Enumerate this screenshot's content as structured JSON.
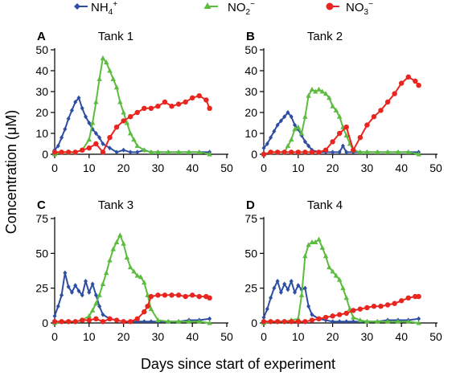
{
  "figure": {
    "ylabel": "Concentration (μM)",
    "xlabel": "Days since start of experiment",
    "legend": [
      {
        "label": "NH",
        "sub": "4",
        "sup": "+",
        "color": "#2e4ea3",
        "marker": "diamond"
      },
      {
        "label": "NO",
        "sub": "2",
        "sup": "−",
        "color": "#5cbc3f",
        "marker": "triangle"
      },
      {
        "label": "NO",
        "sub": "3",
        "sup": "−",
        "color": "#e8251f",
        "marker": "circle"
      }
    ]
  },
  "chart_data": [
    {
      "type": "line",
      "panel_letter": "A",
      "title": "Tank 1",
      "xlim": [
        0,
        50
      ],
      "ylim": [
        0,
        50
      ],
      "xticks": [
        0,
        10,
        20,
        30,
        40,
        50
      ],
      "yticks": [
        0,
        10,
        20,
        30,
        40,
        50
      ],
      "series": [
        {
          "name": "NH4+",
          "color": "#2e4ea3",
          "marker": "diamond",
          "x": [
            0,
            1,
            2,
            3,
            4,
            5,
            6,
            7,
            8,
            9,
            10,
            11,
            12,
            13,
            14,
            16,
            18,
            20,
            22,
            24,
            26,
            28,
            30,
            33,
            36,
            39,
            42,
            45
          ],
          "y": [
            2,
            4,
            8,
            12,
            17,
            21,
            25,
            27,
            22,
            18,
            15,
            12,
            10,
            8,
            5,
            3,
            1,
            2,
            1,
            1,
            2,
            1,
            1,
            1,
            1,
            1,
            1,
            1
          ]
        },
        {
          "name": "NO2-",
          "color": "#5cbc3f",
          "marker": "triangle",
          "x": [
            0,
            2,
            4,
            6,
            8,
            10,
            11,
            12,
            13,
            14,
            15,
            16,
            17,
            18,
            19,
            20,
            21,
            22,
            23,
            24,
            26,
            28,
            30,
            33,
            36,
            39,
            42,
            45
          ],
          "y": [
            0,
            1,
            1,
            1,
            2,
            7,
            15,
            25,
            36,
            46,
            44,
            40,
            36,
            32,
            25,
            20,
            15,
            10,
            7,
            4,
            2,
            1,
            1,
            1,
            1,
            1,
            1,
            0
          ]
        },
        {
          "name": "NO3-",
          "color": "#e8251f",
          "marker": "circle",
          "x": [
            0,
            2,
            4,
            6,
            8,
            10,
            12,
            14,
            16,
            18,
            20,
            22,
            24,
            26,
            28,
            30,
            32,
            34,
            36,
            38,
            40,
            42,
            44,
            45
          ],
          "y": [
            1,
            1,
            1,
            1,
            2,
            3,
            5,
            1,
            8,
            13,
            16,
            18,
            20,
            22,
            22,
            23,
            25,
            23,
            24,
            25,
            27,
            28,
            26,
            22
          ]
        }
      ]
    },
    {
      "type": "line",
      "panel_letter": "B",
      "title": "Tank 2",
      "xlim": [
        0,
        50
      ],
      "ylim": [
        0,
        50
      ],
      "xticks": [
        0,
        10,
        20,
        30,
        40,
        50
      ],
      "yticks": [
        0,
        10,
        20,
        30,
        40,
        50
      ],
      "series": [
        {
          "name": "NH4+",
          "color": "#2e4ea3",
          "marker": "diamond",
          "x": [
            0,
            1,
            2,
            3,
            4,
            5,
            6,
            7,
            8,
            9,
            10,
            11,
            12,
            13,
            14,
            16,
            18,
            20,
            22,
            23,
            24,
            26,
            28,
            30,
            33,
            36,
            39,
            42,
            45
          ],
          "y": [
            3,
            5,
            8,
            11,
            14,
            16,
            18,
            20,
            18,
            14,
            12,
            9,
            6,
            4,
            2,
            1,
            1,
            1,
            1,
            4,
            1,
            1,
            1,
            1,
            1,
            1,
            1,
            1,
            1
          ]
        },
        {
          "name": "NO2-",
          "color": "#5cbc3f",
          "marker": "triangle",
          "x": [
            0,
            2,
            4,
            6,
            7,
            8,
            9,
            10,
            11,
            12,
            13,
            14,
            15,
            16,
            17,
            18,
            19,
            20,
            21,
            22,
            23,
            24,
            25,
            26,
            28,
            30,
            33,
            36,
            39,
            42,
            45
          ],
          "y": [
            0,
            1,
            1,
            1,
            4,
            7,
            12,
            13,
            10,
            18,
            28,
            31,
            30,
            31,
            30,
            29,
            27,
            23,
            21,
            18,
            13,
            9,
            5,
            2,
            1,
            1,
            1,
            1,
            1,
            1,
            0
          ]
        },
        {
          "name": "NO3-",
          "color": "#e8251f",
          "marker": "circle",
          "x": [
            0,
            2,
            4,
            6,
            8,
            10,
            12,
            14,
            16,
            18,
            20,
            22,
            24,
            26,
            28,
            30,
            32,
            34,
            36,
            38,
            40,
            42,
            44,
            45
          ],
          "y": [
            0,
            1,
            1,
            1,
            1,
            1,
            1,
            1,
            1,
            2,
            6,
            10,
            13,
            2,
            8,
            14,
            18,
            21,
            25,
            29,
            34,
            37,
            35,
            33
          ]
        }
      ]
    },
    {
      "type": "line",
      "panel_letter": "C",
      "title": "Tank 3",
      "xlim": [
        0,
        50
      ],
      "ylim": [
        0,
        75
      ],
      "xticks": [
        0,
        10,
        20,
        30,
        40,
        50
      ],
      "yticks": [
        0,
        25,
        50,
        75
      ],
      "series": [
        {
          "name": "NH4+",
          "color": "#2e4ea3",
          "marker": "diamond",
          "x": [
            0,
            1,
            2,
            3,
            4,
            5,
            6,
            7,
            8,
            9,
            10,
            11,
            12,
            13,
            14,
            16,
            18,
            20,
            22,
            24,
            26,
            28,
            30,
            33,
            36,
            39,
            42,
            45
          ],
          "y": [
            5,
            12,
            20,
            36,
            26,
            22,
            27,
            23,
            20,
            30,
            22,
            28,
            20,
            12,
            6,
            3,
            2,
            1,
            1,
            1,
            1,
            1,
            1,
            1,
            1,
            2,
            2,
            3
          ]
        },
        {
          "name": "NO2-",
          "color": "#5cbc3f",
          "marker": "triangle",
          "x": [
            0,
            2,
            4,
            6,
            8,
            10,
            11,
            12,
            13,
            14,
            15,
            16,
            17,
            18,
            19,
            20,
            21,
            22,
            23,
            24,
            25,
            26,
            27,
            28,
            30,
            33,
            36,
            39,
            42,
            45
          ],
          "y": [
            0,
            1,
            1,
            1,
            2,
            5,
            9,
            14,
            20,
            28,
            36,
            45,
            53,
            58,
            63,
            57,
            47,
            40,
            37,
            34,
            33,
            29,
            20,
            10,
            2,
            1,
            1,
            1,
            1,
            0
          ]
        },
        {
          "name": "NO3-",
          "color": "#e8251f",
          "marker": "circle",
          "x": [
            0,
            2,
            4,
            6,
            8,
            10,
            12,
            14,
            16,
            18,
            20,
            22,
            24,
            26,
            27,
            28,
            30,
            32,
            34,
            36,
            38,
            40,
            42,
            44,
            45
          ],
          "y": [
            1,
            1,
            1,
            1,
            2,
            2,
            3,
            1,
            3,
            2,
            1,
            1,
            3,
            8,
            12,
            19,
            20,
            20,
            20,
            20,
            19,
            20,
            19,
            19,
            18
          ]
        }
      ]
    },
    {
      "type": "line",
      "panel_letter": "D",
      "title": "Tank 4",
      "xlim": [
        0,
        50
      ],
      "ylim": [
        0,
        75
      ],
      "xticks": [
        0,
        10,
        20,
        30,
        40,
        50
      ],
      "yticks": [
        0,
        25,
        50,
        75
      ],
      "series": [
        {
          "name": "NH4+",
          "color": "#2e4ea3",
          "marker": "diamond",
          "x": [
            0,
            1,
            2,
            3,
            4,
            5,
            6,
            7,
            8,
            9,
            10,
            11,
            12,
            13,
            14,
            16,
            18,
            20,
            22,
            24,
            26,
            28,
            30,
            33,
            36,
            39,
            42,
            45
          ],
          "y": [
            4,
            10,
            18,
            25,
            30,
            22,
            28,
            24,
            30,
            22,
            27,
            24,
            25,
            12,
            6,
            3,
            2,
            1,
            1,
            1,
            1,
            1,
            1,
            1,
            2,
            2,
            2,
            3
          ]
        },
        {
          "name": "NO2-",
          "color": "#5cbc3f",
          "marker": "triangle",
          "x": [
            0,
            2,
            4,
            6,
            8,
            10,
            11,
            12,
            13,
            14,
            15,
            16,
            17,
            18,
            19,
            20,
            21,
            22,
            23,
            24,
            25,
            26,
            28,
            30,
            33,
            36,
            39,
            42,
            45
          ],
          "y": [
            0,
            1,
            1,
            1,
            2,
            3,
            20,
            48,
            56,
            58,
            58,
            60,
            54,
            48,
            40,
            37,
            34,
            31,
            25,
            18,
            10,
            4,
            2,
            1,
            1,
            1,
            1,
            1,
            0
          ]
        },
        {
          "name": "NO3-",
          "color": "#e8251f",
          "marker": "circle",
          "x": [
            0,
            2,
            4,
            6,
            8,
            10,
            12,
            14,
            16,
            18,
            20,
            22,
            24,
            26,
            28,
            30,
            32,
            34,
            36,
            38,
            40,
            42,
            44,
            45
          ],
          "y": [
            1,
            1,
            1,
            1,
            1,
            1,
            1,
            2,
            3,
            4,
            5,
            6,
            7,
            9,
            10,
            11,
            12,
            12,
            13,
            14,
            16,
            18,
            19,
            19
          ]
        }
      ]
    }
  ]
}
